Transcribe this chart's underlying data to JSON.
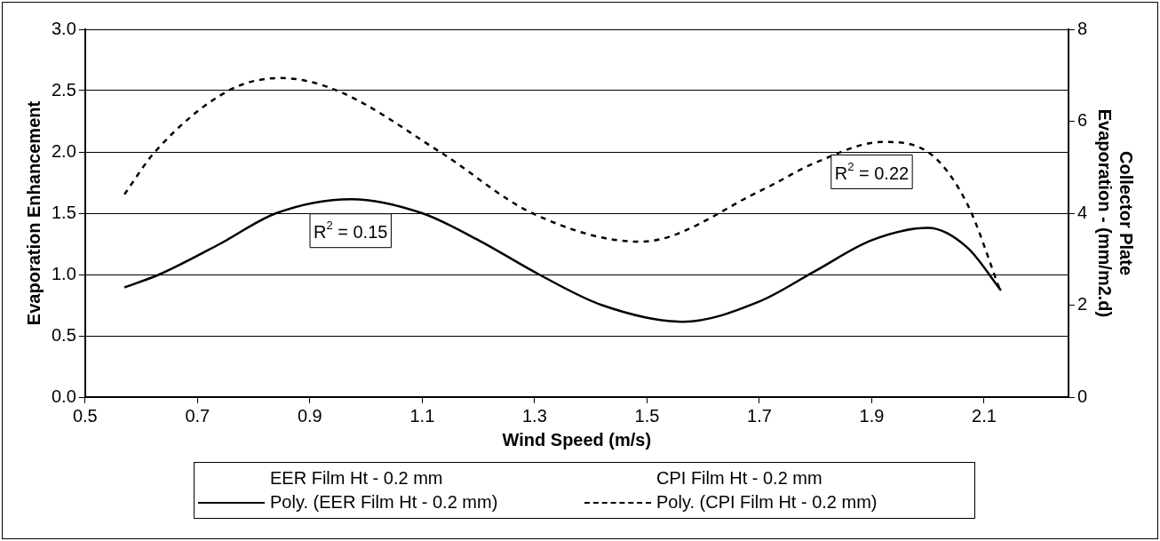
{
  "chart_data": {
    "type": "line",
    "xlabel": "Wind Speed (m/s)",
    "ylabel": "Evaporation Enhancement",
    "y2label": "Collector Plate Evaporation - (mm/m2.d)",
    "xlim": [
      0.5,
      2.25
    ],
    "xticks": [
      {
        "value": 0.5,
        "label": "0.5"
      },
      {
        "value": 0.7,
        "label": "0.7"
      },
      {
        "value": 0.9,
        "label": "0.9"
      },
      {
        "value": 1.1,
        "label": "1.1"
      },
      {
        "value": 1.3,
        "label": "1.3"
      },
      {
        "value": 1.5,
        "label": "1.5"
      },
      {
        "value": 1.7,
        "label": "1.7"
      },
      {
        "value": 1.9,
        "label": "1.9"
      },
      {
        "value": 2.1,
        "label": "2.1"
      }
    ],
    "ylim": [
      0,
      3
    ],
    "yticks": [
      {
        "value": 0,
        "label": "0.0"
      },
      {
        "value": 0.5,
        "label": "0.5"
      },
      {
        "value": 1,
        "label": "1.0"
      },
      {
        "value": 1.5,
        "label": "1.5"
      },
      {
        "value": 2,
        "label": "2.0"
      },
      {
        "value": 2.5,
        "label": "2.5"
      },
      {
        "value": 3,
        "label": "3.0"
      }
    ],
    "y2lim": [
      0,
      8
    ],
    "y2ticks": [
      0,
      2,
      4,
      6,
      8
    ],
    "grid": "y",
    "legend": "bottom",
    "marker": "none",
    "series": [
      {
        "name": "EER Film Ht - 0.2 mm"
      },
      {
        "name": "CPI Film Ht - 0.2 mm",
        "axis": "y2"
      },
      {
        "name": "Poly. (EER Film Ht - 0.2 mm)",
        "line_style": "solid",
        "color": "#000000",
        "x": [
          0.57,
          0.632,
          0.74,
          0.84,
          0.974,
          1.1,
          1.2,
          1.308,
          1.42,
          1.564,
          1.7,
          1.8,
          1.9,
          2.0,
          2.07,
          2.13
        ],
        "values": [
          0.895,
          1.0,
          1.25,
          1.5,
          1.615,
          1.5,
          1.28,
          1.0,
          0.75,
          0.615,
          0.78,
          1.03,
          1.28,
          1.38,
          1.22,
          0.87
        ]
      },
      {
        "name": "Poly. (CPI Film Ht - 0.2 mm)",
        "line_style": "dashed",
        "color": "#000000",
        "axis": "y2",
        "x": [
          0.57,
          0.624,
          0.756,
          0.848,
          0.948,
          1.132,
          1.296,
          1.488,
          1.704,
          1.8,
          1.92,
          2.0,
          2.07,
          2.13
        ],
        "values": [
          4.41,
          5.33,
          6.67,
          6.94,
          6.67,
          5.33,
          4.0,
          3.38,
          4.5,
          5.1,
          5.55,
          5.33,
          4.2,
          2.27
        ]
      }
    ],
    "annotations": [
      "R$^{2}$ = 0.15",
      "R$^{2}$ = 0.22"
    ]
  }
}
